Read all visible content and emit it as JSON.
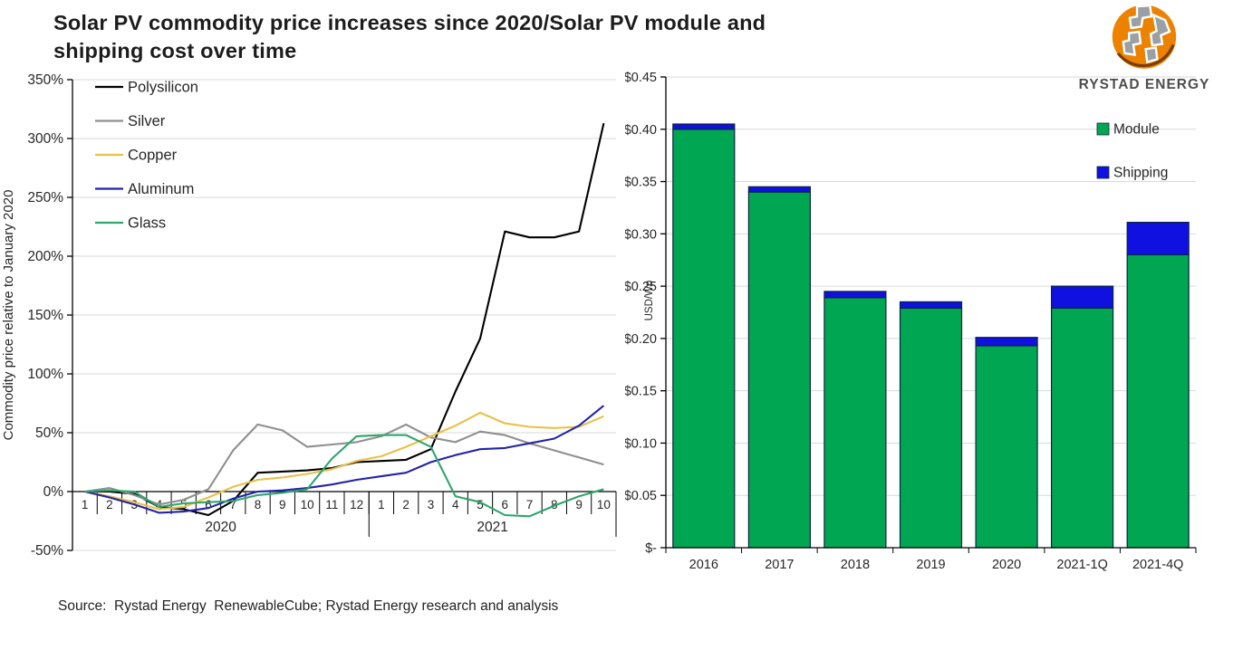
{
  "title": {
    "line1": "Solar PV commodity price increases since 2020/Solar PV module and",
    "line2": "shipping cost over time"
  },
  "brand": {
    "name": "RYSTAD ENERGY"
  },
  "source_note": "Source:  Rystad Energy  RenewableCube; Rystad Energy research and analysis",
  "colors": {
    "grid": "#d9d9d9",
    "axis": "#000000",
    "bar_border": "#0a2540",
    "logo_orange": "#ec8200",
    "logo_gray": "#9aa0a6"
  },
  "chart_data": [
    {
      "type": "line",
      "title": "",
      "ylabel": "Commodity price relative to January 2020",
      "ylim": [
        -50,
        350
      ],
      "ytick_step": 50,
      "ytick_suffix": "%",
      "grid": true,
      "legend_position": "top-left",
      "x_axis": {
        "months": [
          "1",
          "2",
          "3",
          "4",
          "5",
          "6",
          "7",
          "8",
          "9",
          "10",
          "11",
          "12",
          "1",
          "2",
          "3",
          "4",
          "5",
          "6",
          "7",
          "8",
          "9",
          "10"
        ],
        "year_groups": [
          {
            "label": "2020",
            "months": 12
          },
          {
            "label": "2021",
            "months": 10
          }
        ]
      },
      "series": [
        {
          "name": "Polysilicon",
          "color": "#000000",
          "values": [
            0,
            0,
            -2,
            -13,
            -15,
            -20,
            -8,
            16,
            17,
            18,
            20,
            25,
            26,
            27,
            36,
            85,
            130,
            221,
            216,
            216,
            221,
            313
          ]
        },
        {
          "name": "Silver",
          "color": "#8f8f8f",
          "values": [
            0,
            3,
            -3,
            -11,
            -7,
            2,
            35,
            57,
            52,
            38,
            40,
            42,
            47,
            57,
            46,
            42,
            51,
            48,
            41,
            35,
            29,
            23
          ]
        },
        {
          "name": "Copper",
          "color": "#e8c14a",
          "values": [
            0,
            -4,
            -9,
            -15,
            -13,
            -5,
            4,
            10,
            12,
            15,
            19,
            26,
            30,
            38,
            47,
            56,
            67,
            58,
            55,
            54,
            55,
            64
          ]
        },
        {
          "name": "Aluminum",
          "color": "#2323a8",
          "values": [
            0,
            -5,
            -11,
            -18,
            -17,
            -14,
            -6,
            0,
            1,
            3,
            6,
            10,
            13,
            16,
            25,
            31,
            36,
            37,
            41,
            45,
            56,
            73
          ]
        },
        {
          "name": "Glass",
          "color": "#2ea56d",
          "values": [
            0,
            1,
            0,
            -13,
            -10,
            -9,
            -8,
            -3,
            -1,
            2,
            28,
            47,
            48,
            48,
            38,
            -4,
            -9,
            -20,
            -21,
            -12,
            -4,
            2
          ]
        }
      ]
    },
    {
      "type": "stacked-bar",
      "title": "",
      "ylabel": "USD/Wp",
      "ylim": [
        0,
        0.45
      ],
      "ytick_step": 0.05,
      "ytick_labels": [
        "$-",
        "$0.05",
        "$0.10",
        "$0.15",
        "$0.20",
        "$0.25",
        "$0.30",
        "$0.35",
        "$0.40",
        "$0.45"
      ],
      "grid": true,
      "legend_position": "top-right",
      "categories": [
        "2016",
        "2017",
        "2018",
        "2019",
        "2020",
        "2021-1Q",
        "2021-4Q"
      ],
      "series": [
        {
          "name": "Module",
          "color": "#00a651",
          "values": [
            0.4,
            0.34,
            0.239,
            0.229,
            0.193,
            0.229,
            0.28
          ]
        },
        {
          "name": "Shipping",
          "color": "#1010e0",
          "values": [
            0.005,
            0.005,
            0.006,
            0.006,
            0.008,
            0.021,
            0.031
          ]
        }
      ]
    }
  ]
}
